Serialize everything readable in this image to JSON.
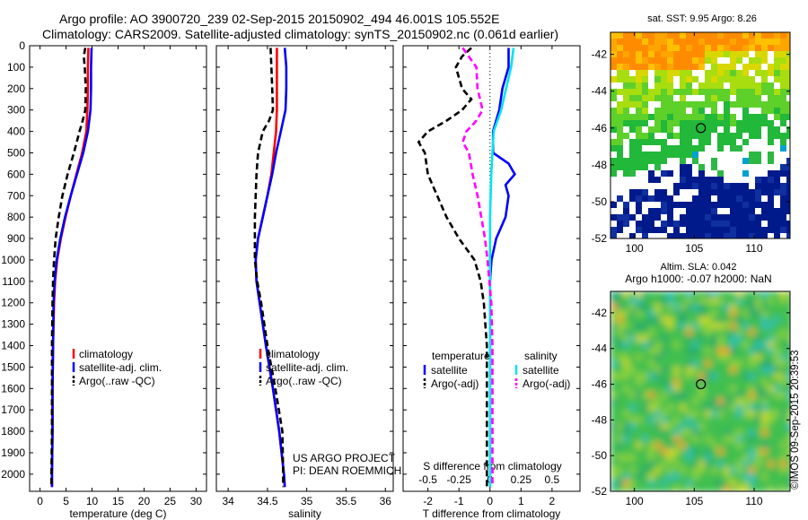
{
  "header": {
    "line1": "Argo profile: AO 3900720_239 02-Sep-2015 20150902_494 46.001S 105.552E",
    "line2": "Climatology: CARS2009. Satellite-adjusted climatology: synTS_20150902.nc (0.061d earlier)"
  },
  "colors": {
    "climatology": "#ff0000",
    "satellite": "#0000ff",
    "argo": "#000000",
    "sat_salinity": "#00e5ee",
    "argo_salinity": "#ff00ff"
  },
  "chart_data": [
    {
      "type": "line",
      "xlabel": "temperature (deg C)",
      "xticks": [
        0,
        5,
        10,
        15,
        20,
        25,
        30
      ],
      "xlim": [
        -2,
        32
      ],
      "ylim": [
        2080,
        0
      ],
      "yticks": [
        0,
        100,
        200,
        300,
        400,
        500,
        600,
        700,
        800,
        900,
        1000,
        1100,
        1200,
        1300,
        1400,
        1500,
        1600,
        1700,
        1800,
        1900,
        2000
      ],
      "legend": [
        "climatology",
        "satellite-adj. clim.",
        "Argo(..raw -QC)"
      ],
      "series": [
        {
          "name": "climatology",
          "color": "red",
          "depth": [
            10,
            100,
            200,
            300,
            400,
            500,
            600,
            700,
            800,
            900,
            1000,
            1100,
            1200,
            1400,
            1600,
            1800,
            2000,
            2060
          ],
          "values": [
            9.3,
            9.2,
            9.2,
            9.1,
            8.9,
            8.1,
            7.0,
            5.9,
            4.9,
            4.0,
            3.3,
            2.9,
            2.7,
            2.5,
            2.4,
            2.4,
            2.3,
            2.3
          ]
        },
        {
          "name": "satellite-adj. clim.",
          "color": "blue",
          "depth": [
            10,
            100,
            200,
            300,
            400,
            500,
            600,
            700,
            800,
            900,
            1000,
            1100,
            1200,
            1400,
            1600,
            1800,
            2000,
            2060
          ],
          "values": [
            9.9,
            9.8,
            9.8,
            9.7,
            9.2,
            8.3,
            7.1,
            5.9,
            4.8,
            3.9,
            3.2,
            2.8,
            2.6,
            2.5,
            2.4,
            2.4,
            2.3,
            2.3
          ]
        },
        {
          "name": "Argo(..raw -QC)",
          "color": "black",
          "depth": [
            10,
            50,
            100,
            200,
            300,
            350,
            400,
            500,
            600,
            700,
            800,
            900,
            1000,
            1100,
            1200,
            1400,
            1600,
            1800,
            2000,
            2060
          ],
          "values": [
            8.7,
            8.4,
            8.6,
            8.8,
            8.7,
            8.2,
            7.6,
            6.5,
            5.3,
            4.3,
            3.6,
            3.0,
            2.7,
            2.5,
            2.4,
            2.3,
            2.3,
            2.3,
            2.2,
            2.2
          ]
        }
      ]
    },
    {
      "type": "line",
      "xlabel": "salinity",
      "xticks": [
        34,
        34.5,
        35,
        35.5,
        36
      ],
      "xlim": [
        33.85,
        36.1
      ],
      "ylim": [
        2080,
        0
      ],
      "legend": [
        "climatology",
        "satellite-adj. clim.",
        "Argo(..raw -QC)"
      ],
      "annotation": [
        "US ARGO PROJECT",
        "PI: DEAN ROEMMICH"
      ],
      "series": [
        {
          "name": "climatology",
          "color": "red",
          "depth": [
            10,
            100,
            200,
            300,
            400,
            500,
            600,
            700,
            800,
            900,
            1000,
            1100,
            1200,
            1400,
            1600,
            1800,
            2000,
            2060
          ],
          "values": [
            34.62,
            34.62,
            34.62,
            34.62,
            34.61,
            34.58,
            34.55,
            34.5,
            34.44,
            34.38,
            34.35,
            34.36,
            34.4,
            34.48,
            34.57,
            34.65,
            34.71,
            34.72
          ]
        },
        {
          "name": "satellite-adj. clim.",
          "color": "blue",
          "depth": [
            10,
            100,
            200,
            300,
            400,
            500,
            600,
            700,
            800,
            900,
            1000,
            1100,
            1200,
            1400,
            1600,
            1800,
            2000,
            2060
          ],
          "values": [
            34.72,
            34.74,
            34.74,
            34.73,
            34.67,
            34.61,
            34.56,
            34.5,
            34.44,
            34.38,
            34.35,
            34.36,
            34.4,
            34.48,
            34.57,
            34.65,
            34.71,
            34.72
          ]
        },
        {
          "name": "Argo(..raw -QC)",
          "color": "black",
          "depth": [
            10,
            100,
            200,
            300,
            350,
            400,
            500,
            600,
            700,
            800,
            900,
            1000,
            1100,
            1200,
            1400,
            1600,
            1800,
            2000,
            2060
          ],
          "values": [
            34.54,
            34.55,
            34.56,
            34.57,
            34.52,
            34.44,
            34.38,
            34.36,
            34.35,
            34.34,
            34.34,
            34.34,
            34.37,
            34.42,
            34.5,
            34.6,
            34.69,
            34.7,
            34.7
          ]
        }
      ]
    },
    {
      "type": "line",
      "xlabel": "T difference from climatology",
      "xlabel2": "S difference from climatology",
      "xticks": [
        -2,
        -1,
        0,
        1,
        2
      ],
      "xticks2": [
        -0.5,
        -0.25,
        0,
        0.25,
        0.5
      ],
      "xlim": [
        -2.8,
        2.9
      ],
      "ylim": [
        2080,
        0
      ],
      "legend_titles": [
        "temperature",
        "salinity"
      ],
      "legend": [
        "satellite",
        "Argo(-adj)",
        "satellite",
        "Argo(-adj)"
      ],
      "series": [
        {
          "name": "satellite",
          "group": "temperature",
          "color": "blue",
          "depth": [
            10,
            100,
            200,
            300,
            400,
            500,
            550,
            600,
            650,
            700,
            800,
            900,
            1000,
            1100,
            1200,
            1400,
            1600,
            1800,
            2000,
            2060
          ],
          "values": [
            0.6,
            0.6,
            0.4,
            0.3,
            0.1,
            0.1,
            0.6,
            0.8,
            0.5,
            0.6,
            0.5,
            0.2,
            0.05,
            0,
            0,
            0,
            0,
            0,
            0,
            0
          ]
        },
        {
          "name": "Argo(-adj)",
          "group": "temperature",
          "color": "black",
          "depth": [
            10,
            50,
            100,
            200,
            250,
            300,
            350,
            400,
            450,
            500,
            600,
            700,
            800,
            900,
            1000,
            1100,
            1200,
            1300,
            1400,
            1600,
            1800,
            2000,
            2060
          ],
          "values": [
            -0.6,
            -0.9,
            -1.1,
            -0.9,
            -0.6,
            -0.9,
            -1.4,
            -2.0,
            -2.3,
            -2.1,
            -2.0,
            -1.7,
            -1.4,
            -1.0,
            -0.5,
            -0.3,
            -0.2,
            -0.15,
            -0.1,
            -0.1,
            -0.1,
            -0.1,
            -0.1
          ]
        },
        {
          "name": "satellite",
          "group": "salinity",
          "color": "cyan",
          "depth": [
            10,
            100,
            200,
            300,
            400,
            500,
            600,
            800,
            1000,
            1200,
            1400,
            1600,
            1800,
            2000,
            2060
          ],
          "values": [
            0.19,
            0.17,
            0.13,
            0.09,
            0.03,
            0.02,
            0.01,
            0,
            0,
            0,
            0,
            0,
            0,
            0,
            0
          ]
        },
        {
          "name": "Argo(-adj)",
          "group": "salinity",
          "color": "magenta",
          "depth": [
            10,
            100,
            200,
            300,
            350,
            400,
            450,
            500,
            600,
            700,
            800,
            900,
            1000,
            1200,
            1400,
            1600,
            1800,
            2000,
            2060
          ],
          "values": [
            -0.22,
            -0.11,
            -0.1,
            -0.06,
            -0.11,
            -0.19,
            -0.22,
            -0.17,
            -0.14,
            -0.1,
            -0.07,
            -0.04,
            -0.02,
            0.01,
            0.02,
            0.02,
            0.02,
            0.02,
            0.02
          ]
        }
      ]
    },
    {
      "type": "heatmap",
      "title": "sat. SST: 9.95  Argo: 8.26",
      "xticks": [
        100,
        105,
        110
      ],
      "yticks": [
        -42,
        -44,
        -46,
        -48,
        -50,
        -52
      ],
      "xlim": [
        98,
        113
      ],
      "ylim": [
        -52,
        -40.8
      ],
      "marker": {
        "lon": 105.552,
        "lat": -46.001
      }
    },
    {
      "type": "heatmap",
      "title": "Altim. SLA: 0.042",
      "subtitle": "Argo h1000: -0.07 h2000: NaN",
      "xticks": [
        100,
        105,
        110
      ],
      "yticks": [
        -42,
        -44,
        -46,
        -48,
        -50,
        -52
      ],
      "xlim": [
        98,
        113
      ],
      "ylim": [
        -52,
        -40.8
      ],
      "marker": {
        "lon": 105.552,
        "lat": -46.001
      }
    }
  ],
  "footer": "©IMOS 09-Sep-2015 20:39:53"
}
